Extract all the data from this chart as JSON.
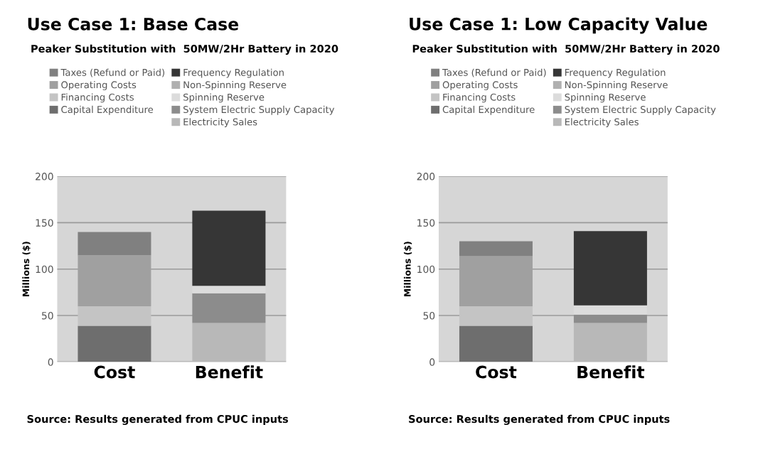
{
  "chart_data": [
    {
      "type": "bar",
      "stacked": true,
      "title": "Use Case 1: Base Case",
      "subtitle": "Peaker Substitution with  50MW/2Hr Battery in 2020",
      "ylabel": "Millions ($)",
      "categories": [
        "Cost",
        "Benefit"
      ],
      "ylim": [
        0,
        200
      ],
      "yticks": [
        0,
        50,
        100,
        150,
        200
      ],
      "grid": "y",
      "legend": "top",
      "annotations": [
        "Source: Results generated from CPUC inputs"
      ],
      "series": [
        {
          "name": "Capital Expenditure",
          "color": "#6e6e6e",
          "values": [
            39,
            null
          ]
        },
        {
          "name": "Financing Costs",
          "color": "#c4c4c4",
          "values": [
            21,
            null
          ]
        },
        {
          "name": "Operating Costs",
          "color": "#a0a0a0",
          "values": [
            55,
            null
          ]
        },
        {
          "name": "Taxes (Refund or Paid)",
          "color": "#808080",
          "values": [
            25,
            null
          ]
        },
        {
          "name": "Electricity Sales",
          "color": "#b8b8b8",
          "values": [
            null,
            42
          ]
        },
        {
          "name": "System Electric Supply Capacity",
          "color": "#8c8c8c",
          "values": [
            null,
            32
          ]
        },
        {
          "name": "Spinning Reserve",
          "color": "#dcdcdc",
          "values": [
            null,
            8
          ]
        },
        {
          "name": "Non-Spinning Reserve",
          "color": "#b0b0b0",
          "values": [
            null,
            null
          ]
        },
        {
          "name": "Frequency Regulation",
          "color": "#363636",
          "values": [
            null,
            81
          ]
        }
      ]
    },
    {
      "type": "bar",
      "stacked": true,
      "title": "Use Case 1: Low Capacity Value",
      "subtitle": "Peaker Substitution with  50MW/2Hr Battery in 2020",
      "ylabel": "Millions ($)",
      "categories": [
        "Cost",
        "Benefit"
      ],
      "ylim": [
        0,
        200
      ],
      "yticks": [
        0,
        50,
        100,
        150,
        200
      ],
      "grid": "y",
      "legend": "top",
      "annotations": [
        "Source: Results generated from CPUC inputs"
      ],
      "series": [
        {
          "name": "Capital Expenditure",
          "color": "#6e6e6e",
          "values": [
            39,
            null
          ]
        },
        {
          "name": "Financing Costs",
          "color": "#c4c4c4",
          "values": [
            21,
            null
          ]
        },
        {
          "name": "Operating Costs",
          "color": "#a0a0a0",
          "values": [
            54,
            null
          ]
        },
        {
          "name": "Taxes (Refund or Paid)",
          "color": "#808080",
          "values": [
            16,
            null
          ]
        },
        {
          "name": "Electricity Sales",
          "color": "#b8b8b8",
          "values": [
            null,
            42
          ]
        },
        {
          "name": "System Electric Supply Capacity",
          "color": "#8c8c8c",
          "values": [
            null,
            9
          ]
        },
        {
          "name": "Spinning Reserve",
          "color": "#dcdcdc",
          "values": [
            null,
            10
          ]
        },
        {
          "name": "Non-Spinning Reserve",
          "color": "#b0b0b0",
          "values": [
            null,
            null
          ]
        },
        {
          "name": "Frequency Regulation",
          "color": "#363636",
          "values": [
            null,
            80
          ]
        }
      ]
    }
  ]
}
